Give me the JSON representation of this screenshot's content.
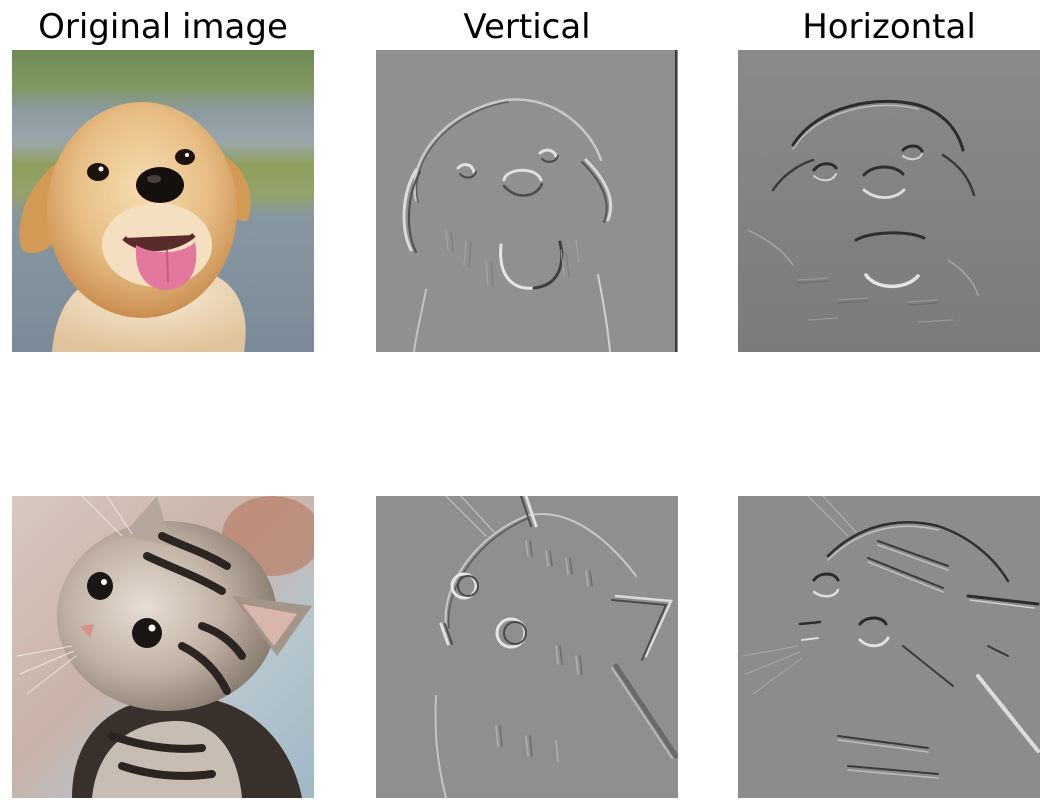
{
  "figure": {
    "column_titles": [
      "Original image",
      "Vertical",
      "Horizontal"
    ],
    "rows": [
      {
        "subject": "puppy",
        "panels": [
          {
            "kind": "original",
            "content": "photo of a golden retriever puppy with pink tongue"
          },
          {
            "kind": "vertical-edge-filter",
            "content": "grayscale edge response of puppy"
          },
          {
            "kind": "horizontal-edge-filter",
            "content": "grayscale edge response of puppy"
          }
        ]
      },
      {
        "subject": "kitten",
        "panels": [
          {
            "kind": "original",
            "content": "photo of a striped tabby kitten"
          },
          {
            "kind": "vertical-edge-filter",
            "content": "grayscale edge response of kitten"
          },
          {
            "kind": "horizontal-edge-filter",
            "content": "grayscale edge response of kitten"
          }
        ]
      }
    ]
  },
  "colors": {
    "filter_background": "#8f8f8f",
    "filter_background_dark": "#7a7a7a",
    "puppy_fur": "#e2b37a",
    "puppy_tongue": "#e4779e",
    "kitten_fur": "#b9aca1",
    "kitten_stripes": "#2b2420"
  }
}
